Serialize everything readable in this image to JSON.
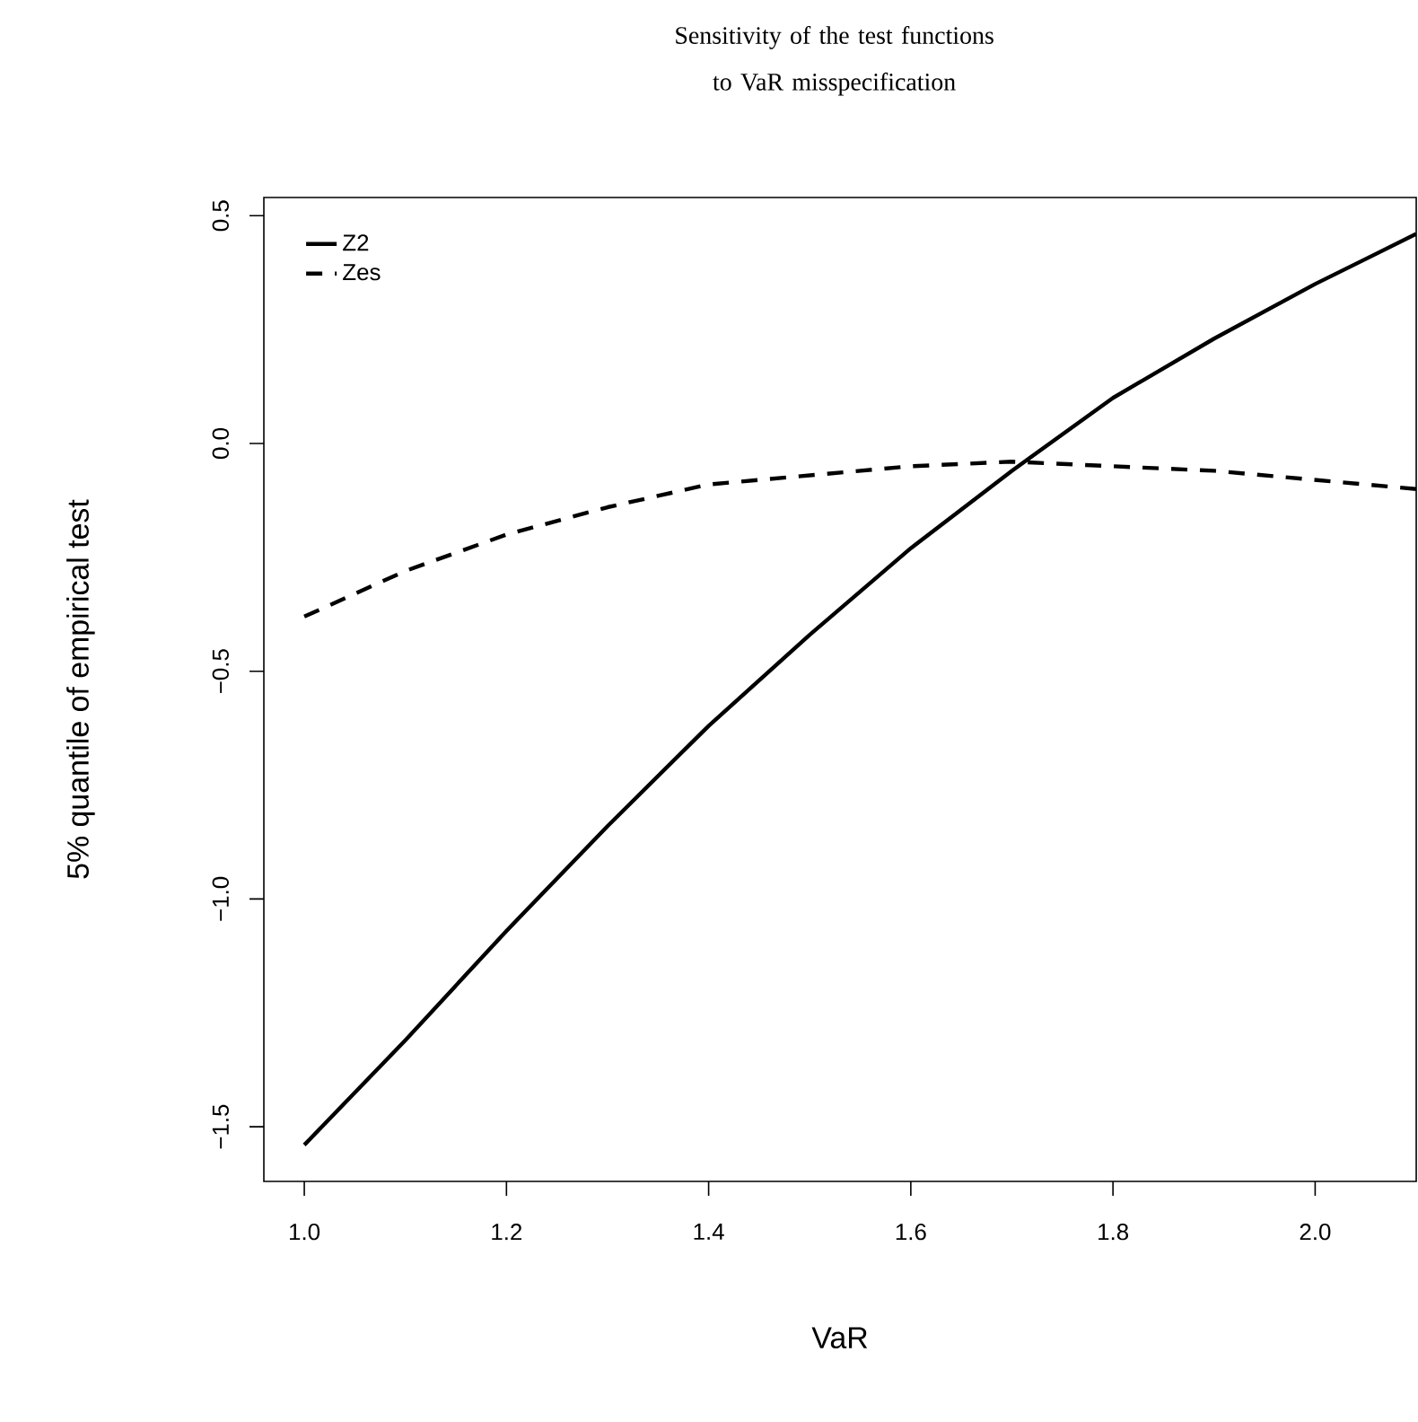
{
  "chart_data": {
    "type": "line",
    "title": "Sensitivity of the test functions to VaR misspecification",
    "xlabel": "VaR",
    "ylabel": "5% quantile of empirical test",
    "x": [
      1.0,
      1.1,
      1.2,
      1.3,
      1.4,
      1.5,
      1.6,
      1.7,
      1.8,
      1.9,
      2.0,
      2.1
    ],
    "series": [
      {
        "name": "Z2",
        "color": "#000000",
        "line_style": "solid",
        "values": [
          -1.54,
          -1.31,
          -1.07,
          -0.84,
          -0.62,
          -0.42,
          -0.23,
          -0.06,
          0.1,
          0.23,
          0.35,
          0.46
        ]
      },
      {
        "name": "Zes",
        "color": "#000000",
        "line_style": "dashed",
        "values": [
          -0.38,
          -0.28,
          -0.2,
          -0.14,
          -0.09,
          -0.07,
          -0.05,
          -0.04,
          -0.05,
          -0.06,
          -0.08,
          -0.1
        ]
      }
    ],
    "xlim": [
      0.96,
      2.1
    ],
    "ylim": [
      -1.62,
      0.54
    ],
    "xticks": [
      {
        "value": 1.0,
        "label": "1.0"
      },
      {
        "value": 1.2,
        "label": "1.2"
      },
      {
        "value": 1.4,
        "label": "1.4"
      },
      {
        "value": 1.6,
        "label": "1.6"
      },
      {
        "value": 1.8,
        "label": "1.8"
      },
      {
        "value": 2.0,
        "label": "2.0"
      }
    ],
    "yticks": [
      {
        "value": -1.5,
        "label": "−1.5"
      },
      {
        "value": -1.0,
        "label": "−1.0"
      },
      {
        "value": -0.5,
        "label": "−0.5"
      },
      {
        "value": 0.0,
        "label": "0.0"
      },
      {
        "value": 0.5,
        "label": "0.5"
      }
    ],
    "grid": false,
    "legend": "top left",
    "marker": "none"
  }
}
